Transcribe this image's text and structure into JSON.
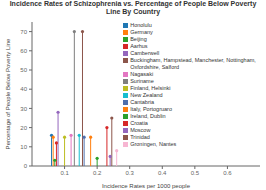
{
  "chart_data": {
    "type": "lollipop",
    "title": "Incidence Rates of Schizophrenia vs. Percentage of People Below Poverty Line By Country",
    "xlabel": "Incidence Rates per 1000 people",
    "ylabel": "Percentage of People Below Poverty Line",
    "xlim": [
      0,
      0.7
    ],
    "ylim": [
      0,
      75
    ],
    "xticks": [
      0.1,
      0.2,
      0.3,
      0.4,
      0.5,
      0.6
    ],
    "yticks": [
      0,
      10,
      20,
      30,
      40,
      50,
      60,
      70
    ],
    "grid": false,
    "legend": "upper right",
    "series": [
      {
        "name": "Honolulu",
        "color": "#1f77b4",
        "x": [
          0.06
        ],
        "values": [
          16
        ]
      },
      {
        "name": "Germany",
        "color": "#ff7f0e",
        "x": [
          0.065
        ],
        "values": [
          15
        ]
      },
      {
        "name": "Beijing",
        "color": "#2ca02c",
        "x": [
          0.07
        ],
        "values": [
          3
        ]
      },
      {
        "name": "Aarhus",
        "color": "#d62728",
        "x": [
          0.075
        ],
        "values": [
          12
        ]
      },
      {
        "name": "Camberwell",
        "color": "#9467bd",
        "x": [
          0.08
        ],
        "values": [
          28
        ]
      },
      {
        "name": "Buckingham, Hampstead, Manchester, Nottingham, Oxfordshire, Salford",
        "color": "#8c564b",
        "x": [
          0.155
        ],
        "values": [
          70
        ]
      },
      {
        "name": "Nagasaki",
        "color": "#e377c2",
        "x": [
          0.12
        ],
        "values": [
          16
        ]
      },
      {
        "name": "Suriname",
        "color": "#7f7f7f",
        "x": [
          0.13
        ],
        "values": [
          70
        ]
      },
      {
        "name": "Finland, Helsinki",
        "color": "#bcbd22",
        "x": [
          0.1
        ],
        "values": [
          15
        ]
      },
      {
        "name": "New Zealand",
        "color": "#17becf",
        "x": [
          0.145
        ],
        "values": [
          16
        ]
      },
      {
        "name": "Cantabria",
        "color": "#4e6fad",
        "x": [
          0.16
        ],
        "values": [
          15
        ]
      },
      {
        "name": "Italy, Portogruaro",
        "color": "#ff7f0e",
        "x": [
          0.18
        ],
        "values": [
          15
        ]
      },
      {
        "name": "Ireland, Dublin",
        "color": "#2ca02c",
        "x": [
          0.2
        ],
        "values": [
          4
        ]
      },
      {
        "name": "Croatia",
        "color": "#d62728",
        "x": [
          0.23
        ],
        "values": [
          20
        ]
      },
      {
        "name": "Moscow",
        "color": "#9467bd",
        "x": [
          0.24
        ],
        "values": [
          5
        ]
      },
      {
        "name": "Trinidad",
        "color": "#8c564b",
        "x": [
          0.245
        ],
        "values": [
          25
        ]
      },
      {
        "name": "Groningen, Nantes",
        "color": "#f7b6d2",
        "x": [
          0.26
        ],
        "values": [
          8
        ]
      }
    ]
  }
}
